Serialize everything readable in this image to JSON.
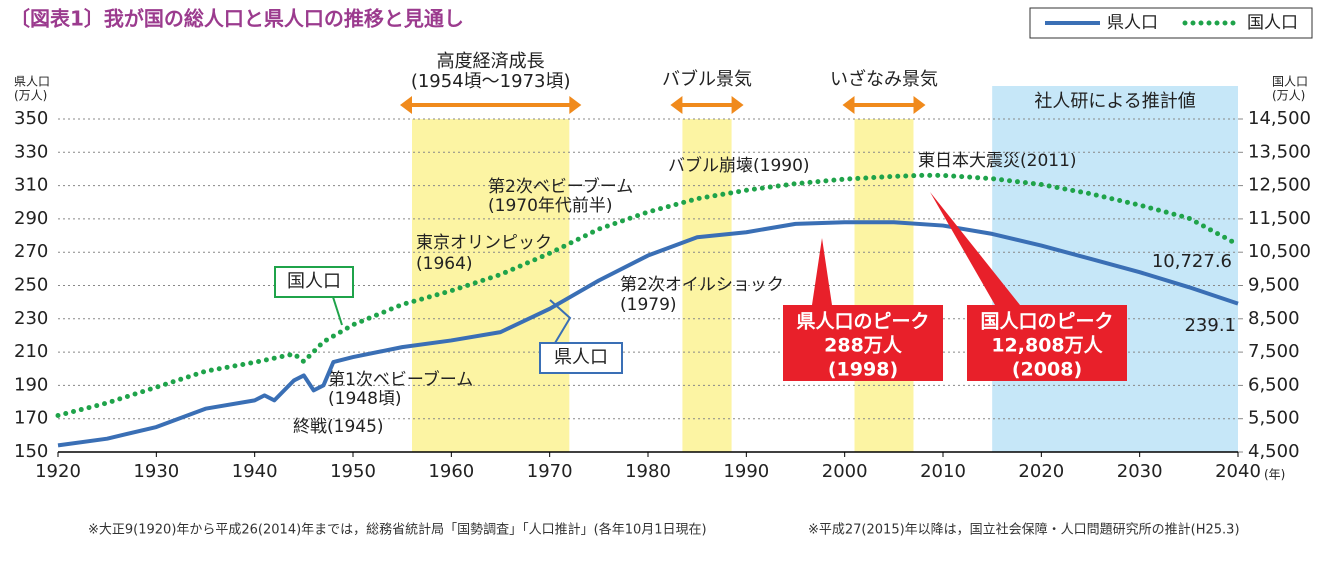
{
  "chart_data": {
    "type": "line",
    "title": "〔図表1〕我が国の総人口と県人口の推移と見通し",
    "y_label": [
      "県人口",
      "(万人)"
    ],
    "y2_label": [
      "国人口",
      "(万人)"
    ],
    "x_unit": "(年)",
    "xlim": [
      1920,
      2040
    ],
    "xticks": [
      1920,
      1930,
      1940,
      1950,
      1960,
      1970,
      1980,
      1990,
      2000,
      2010,
      2020,
      2030,
      2040
    ],
    "ylim": [
      150,
      350
    ],
    "yticks": [
      150,
      170,
      190,
      210,
      230,
      250,
      270,
      290,
      310,
      330,
      350
    ],
    "y2lim": [
      4500,
      14500
    ],
    "y2ticks": [
      {
        "value": 4500,
        "label": "4,500"
      },
      {
        "value": 5500,
        "label": "5,500"
      },
      {
        "value": 6500,
        "label": "6,500"
      },
      {
        "value": 7500,
        "label": "7,500"
      },
      {
        "value": 8500,
        "label": "8,500"
      },
      {
        "value": 9500,
        "label": "9,500"
      },
      {
        "value": 10500,
        "label": "10,500"
      },
      {
        "value": 11500,
        "label": "11,500"
      },
      {
        "value": 12500,
        "label": "12,500"
      },
      {
        "value": 13500,
        "label": "13,500"
      },
      {
        "value": 14500,
        "label": "14,500"
      }
    ],
    "grid": true,
    "legend": "top-right",
    "series": [
      {
        "name": "県人口",
        "color": "#3a6fb5",
        "style": "solid",
        "x": [
          1920,
          1925,
          1930,
          1935,
          1940,
          1941,
          1942,
          1944,
          1945,
          1946,
          1947,
          1948,
          1950,
          1955,
          1960,
          1965,
          1970,
          1975,
          1980,
          1985,
          1990,
          1995,
          2000,
          2005,
          2010,
          2015,
          2020,
          2025,
          2030,
          2035,
          2040
        ],
        "values": [
          154,
          158,
          165,
          176,
          181,
          184,
          181,
          193,
          196,
          187,
          190,
          204,
          207,
          213,
          217,
          222,
          236,
          253,
          268,
          279,
          282,
          287,
          288,
          288,
          286,
          281,
          274,
          266,
          258,
          249,
          239.1
        ]
      },
      {
        "name": "国人口",
        "color": "#1fa34a",
        "style": "dotted",
        "axis": "y2",
        "x": [
          1920,
          1925,
          1930,
          1935,
          1940,
          1944,
          1945,
          1947,
          1950,
          1955,
          1960,
          1965,
          1970,
          1975,
          1980,
          1985,
          1990,
          1995,
          2000,
          2005,
          2008,
          2010,
          2015,
          2020,
          2025,
          2030,
          2035,
          2040
        ],
        "values": [
          5596,
          5974,
          6445,
          6925,
          7193,
          7443,
          7215,
          7810,
          8320,
          8928,
          9342,
          9828,
          10467,
          11194,
          11706,
          12105,
          12361,
          12557,
          12693,
          12777,
          12808,
          12806,
          12709,
          12532,
          12254,
          11913,
          11522,
          10727.6
        ],
        "end_label": "10,727.6"
      }
    ],
    "bands": [
      {
        "lines": [
          "高度経済成長",
          "(1954頃〜1973頃)"
        ],
        "start": 1956,
        "end": 1972,
        "color": "#fcf4a3"
      },
      {
        "lines": [
          "バブル景気"
        ],
        "start": 1983.5,
        "end": 1988.5,
        "color": "#fcf4a3"
      },
      {
        "lines": [
          "いざなみ景気"
        ],
        "start": 2001,
        "end": 2007,
        "color": "#fcf4a3"
      },
      {
        "lines": [
          "社人研による推計値"
        ],
        "start": 2015,
        "end": 2040,
        "color": "#c6e7f8"
      }
    ],
    "annotations": [
      {
        "lines": [
          "バブル崩壊(1990)"
        ]
      },
      {
        "lines": [
          "東日本大震災(2011)"
        ]
      },
      {
        "lines": [
          "第2次ベビーブーム",
          "(1970年代前半)"
        ]
      },
      {
        "lines": [
          "東京オリンピック",
          "(1964)"
        ]
      },
      {
        "lines": [
          "第2次オイルショック",
          "(1979)"
        ]
      },
      {
        "lines": [
          "第1次ベビーブーム",
          "(1948頃)"
        ]
      },
      {
        "lines": [
          "終戦(1945)"
        ]
      }
    ],
    "callouts": [
      "国人口",
      "県人口"
    ],
    "peaks": [
      {
        "lines": [
          "県人口のピーク",
          "288万人",
          "(1998)"
        ]
      },
      {
        "lines": [
          "国人口のピーク",
          "12,808万人",
          "(2008)"
        ]
      }
    ],
    "footnotes": [
      "※大正9(1920)年から平成26(2014)年までは，総務省統計局「国勢調査」「人口推計」(各年10月1日現在)",
      "※平成27(2015)年以降は，国立社会保障・人口問題研究所の推計(H25.3)"
    ]
  }
}
